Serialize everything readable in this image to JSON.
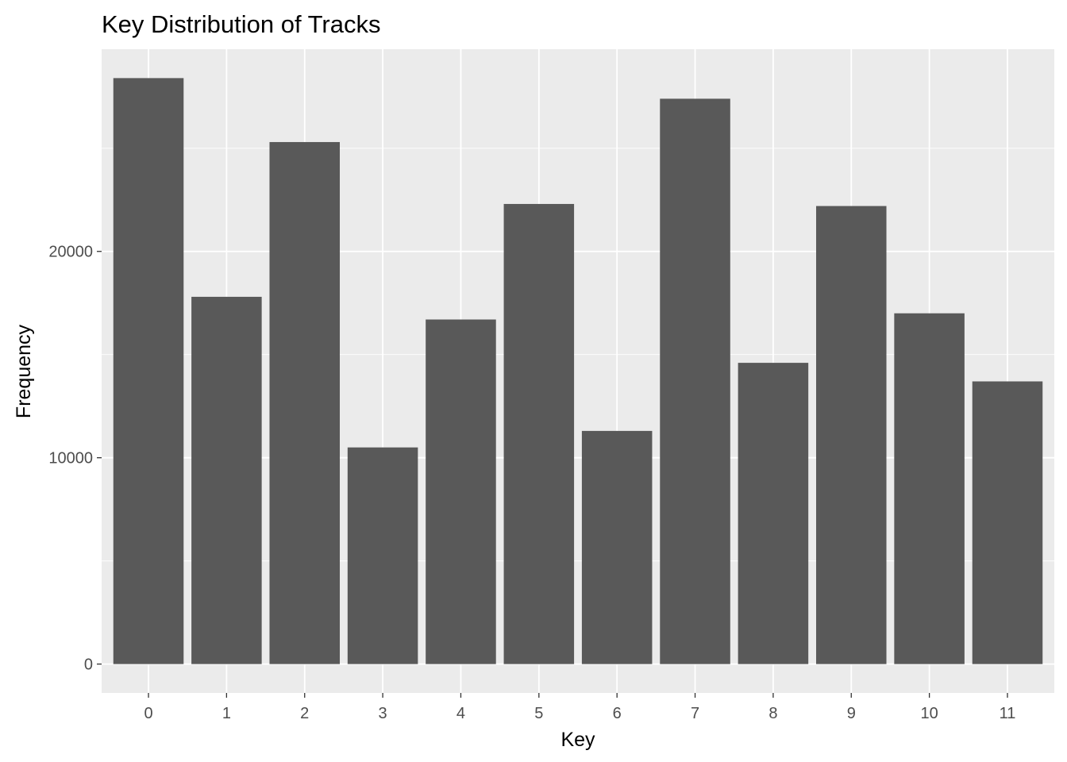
{
  "chart_data": {
    "type": "bar",
    "title": "Key Distribution of Tracks",
    "xlabel": "Key",
    "ylabel": "Frequency",
    "categories": [
      "0",
      "1",
      "2",
      "3",
      "4",
      "5",
      "6",
      "7",
      "8",
      "9",
      "10",
      "11"
    ],
    "values": [
      28400,
      17800,
      25300,
      10500,
      16700,
      22300,
      11300,
      27400,
      14600,
      22200,
      17000,
      13700
    ],
    "ylim": [
      -1400,
      29800
    ],
    "y_ticks": [
      0,
      10000,
      20000
    ],
    "y_tick_labels": [
      "0",
      "10000",
      "20000"
    ],
    "grid": true,
    "legend": "none",
    "colors": {
      "bar": "#595959",
      "panel_background": "#ebebeb",
      "grid": "#ffffff",
      "tick_label": "#4d4d4d",
      "tick_mark": "#333333"
    }
  }
}
